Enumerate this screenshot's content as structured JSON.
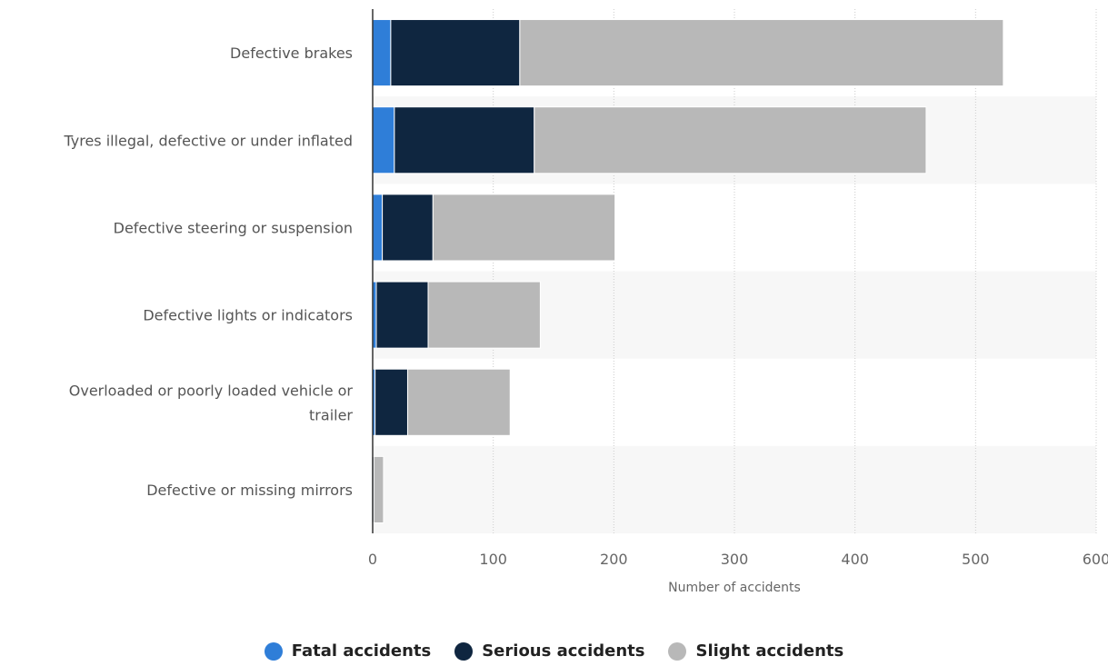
{
  "chart_data": {
    "type": "bar",
    "orientation": "horizontal",
    "stacked": true,
    "categories": [
      [
        "Defective brakes"
      ],
      [
        "Tyres illegal, defective or under inflated"
      ],
      [
        "Defective steering or suspension"
      ],
      [
        "Defective lights or indicators"
      ],
      [
        "Overloaded or poorly loaded vehicle or",
        "trailer"
      ],
      [
        "Defective or missing mirrors"
      ]
    ],
    "series": [
      {
        "name": "Fatal accidents",
        "color": "#2f7ed8",
        "values": [
          15,
          18,
          8,
          3,
          2,
          0
        ]
      },
      {
        "name": "Serious accidents",
        "color": "#0f2640",
        "values": [
          107,
          116,
          42,
          43,
          27,
          1
        ]
      },
      {
        "name": "Slight accidents",
        "color": "#b8b8b8",
        "values": [
          401,
          325,
          151,
          93,
          85,
          8
        ]
      }
    ],
    "xlabel": "Number of accidents",
    "xlim": [
      0,
      600
    ],
    "xticks": [
      0,
      100,
      200,
      300,
      400,
      500,
      600
    ],
    "grid": true,
    "legend_position": "bottom-center"
  }
}
